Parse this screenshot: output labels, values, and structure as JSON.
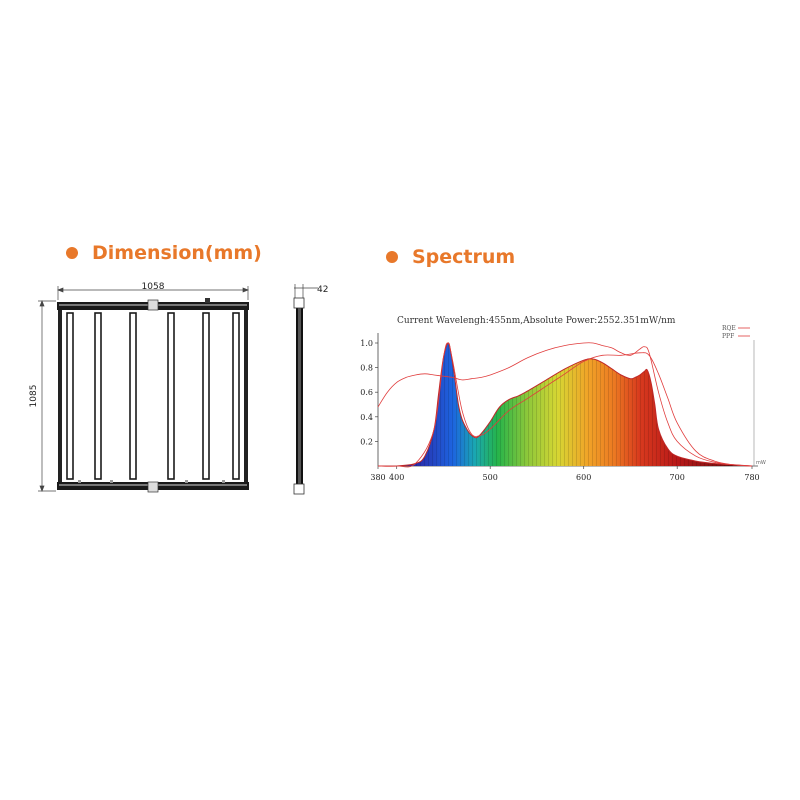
{
  "dimension": {
    "title": "Dimension(mm)",
    "width_label": "1058",
    "height_label": "1085",
    "depth_label": "42"
  },
  "spectrum": {
    "title": "Spectrum",
    "caption": "Current Wavelengh:455nm,Absolute Power:2552.351mW/nm",
    "legend": [
      "RQE",
      "PPF"
    ],
    "corner_label": "mW"
  },
  "colors": {
    "accent": "#e8782a",
    "curve": "#e03c3c"
  },
  "chart_data": {
    "type": "area",
    "title": "Current Wavelengh:455nm,Absolute Power:2552.351mW/nm",
    "xlabel": "",
    "ylabel": "",
    "xlim": [
      380,
      780
    ],
    "ylim": [
      0,
      1.0
    ],
    "x_ticks": [
      "380",
      "400",
      "500",
      "600",
      "700",
      "780"
    ],
    "y_ticks": [
      "0.2",
      "0.4",
      "0.6",
      "0.8",
      "1.0"
    ],
    "legend_position": "top-right",
    "series": [
      {
        "name": "",
        "x": [
          380,
          400,
          420,
          430,
          440,
          445,
          450,
          455,
          458,
          462,
          466,
          470,
          475,
          480,
          485,
          490,
          500,
          510,
          520,
          530,
          540,
          560,
          580,
          600,
          610,
          620,
          630,
          640,
          650,
          655,
          660,
          665,
          668,
          672,
          676,
          680,
          690,
          700,
          720,
          740,
          760,
          780
        ],
        "values": [
          0.0,
          0.0,
          0.02,
          0.08,
          0.3,
          0.6,
          0.88,
          1.0,
          0.92,
          0.72,
          0.5,
          0.38,
          0.3,
          0.25,
          0.23,
          0.26,
          0.36,
          0.48,
          0.54,
          0.57,
          0.61,
          0.7,
          0.79,
          0.86,
          0.87,
          0.84,
          0.79,
          0.74,
          0.71,
          0.72,
          0.74,
          0.77,
          0.78,
          0.68,
          0.5,
          0.3,
          0.14,
          0.08,
          0.04,
          0.02,
          0.01,
          0.0
        ]
      },
      {
        "name": "RQE",
        "x": [
          380,
          390,
          400,
          410,
          420,
          430,
          440,
          450,
          460,
          470,
          480,
          490,
          500,
          520,
          540,
          560,
          580,
          600,
          610,
          620,
          630,
          640,
          650,
          660,
          665,
          670,
          680,
          690,
          700,
          720,
          740,
          760,
          780
        ],
        "values": [
          0.48,
          0.6,
          0.68,
          0.72,
          0.74,
          0.75,
          0.74,
          0.73,
          0.72,
          0.7,
          0.71,
          0.72,
          0.74,
          0.8,
          0.88,
          0.94,
          0.98,
          1.0,
          1.0,
          0.98,
          0.96,
          0.92,
          0.9,
          0.95,
          0.97,
          0.92,
          0.6,
          0.35,
          0.2,
          0.08,
          0.03,
          0.01,
          0.0
        ]
      },
      {
        "name": "PPF",
        "x": [
          380,
          400,
          420,
          440,
          450,
          455,
          460,
          470,
          480,
          490,
          500,
          520,
          540,
          560,
          580,
          600,
          620,
          640,
          660,
          670,
          680,
          690,
          700,
          720,
          740,
          760,
          780
        ],
        "values": [
          0.0,
          0.0,
          0.02,
          0.3,
          0.88,
          1.0,
          0.85,
          0.45,
          0.26,
          0.25,
          0.3,
          0.45,
          0.55,
          0.65,
          0.75,
          0.85,
          0.9,
          0.9,
          0.92,
          0.9,
          0.75,
          0.55,
          0.35,
          0.12,
          0.04,
          0.01,
          0.0
        ]
      }
    ]
  }
}
